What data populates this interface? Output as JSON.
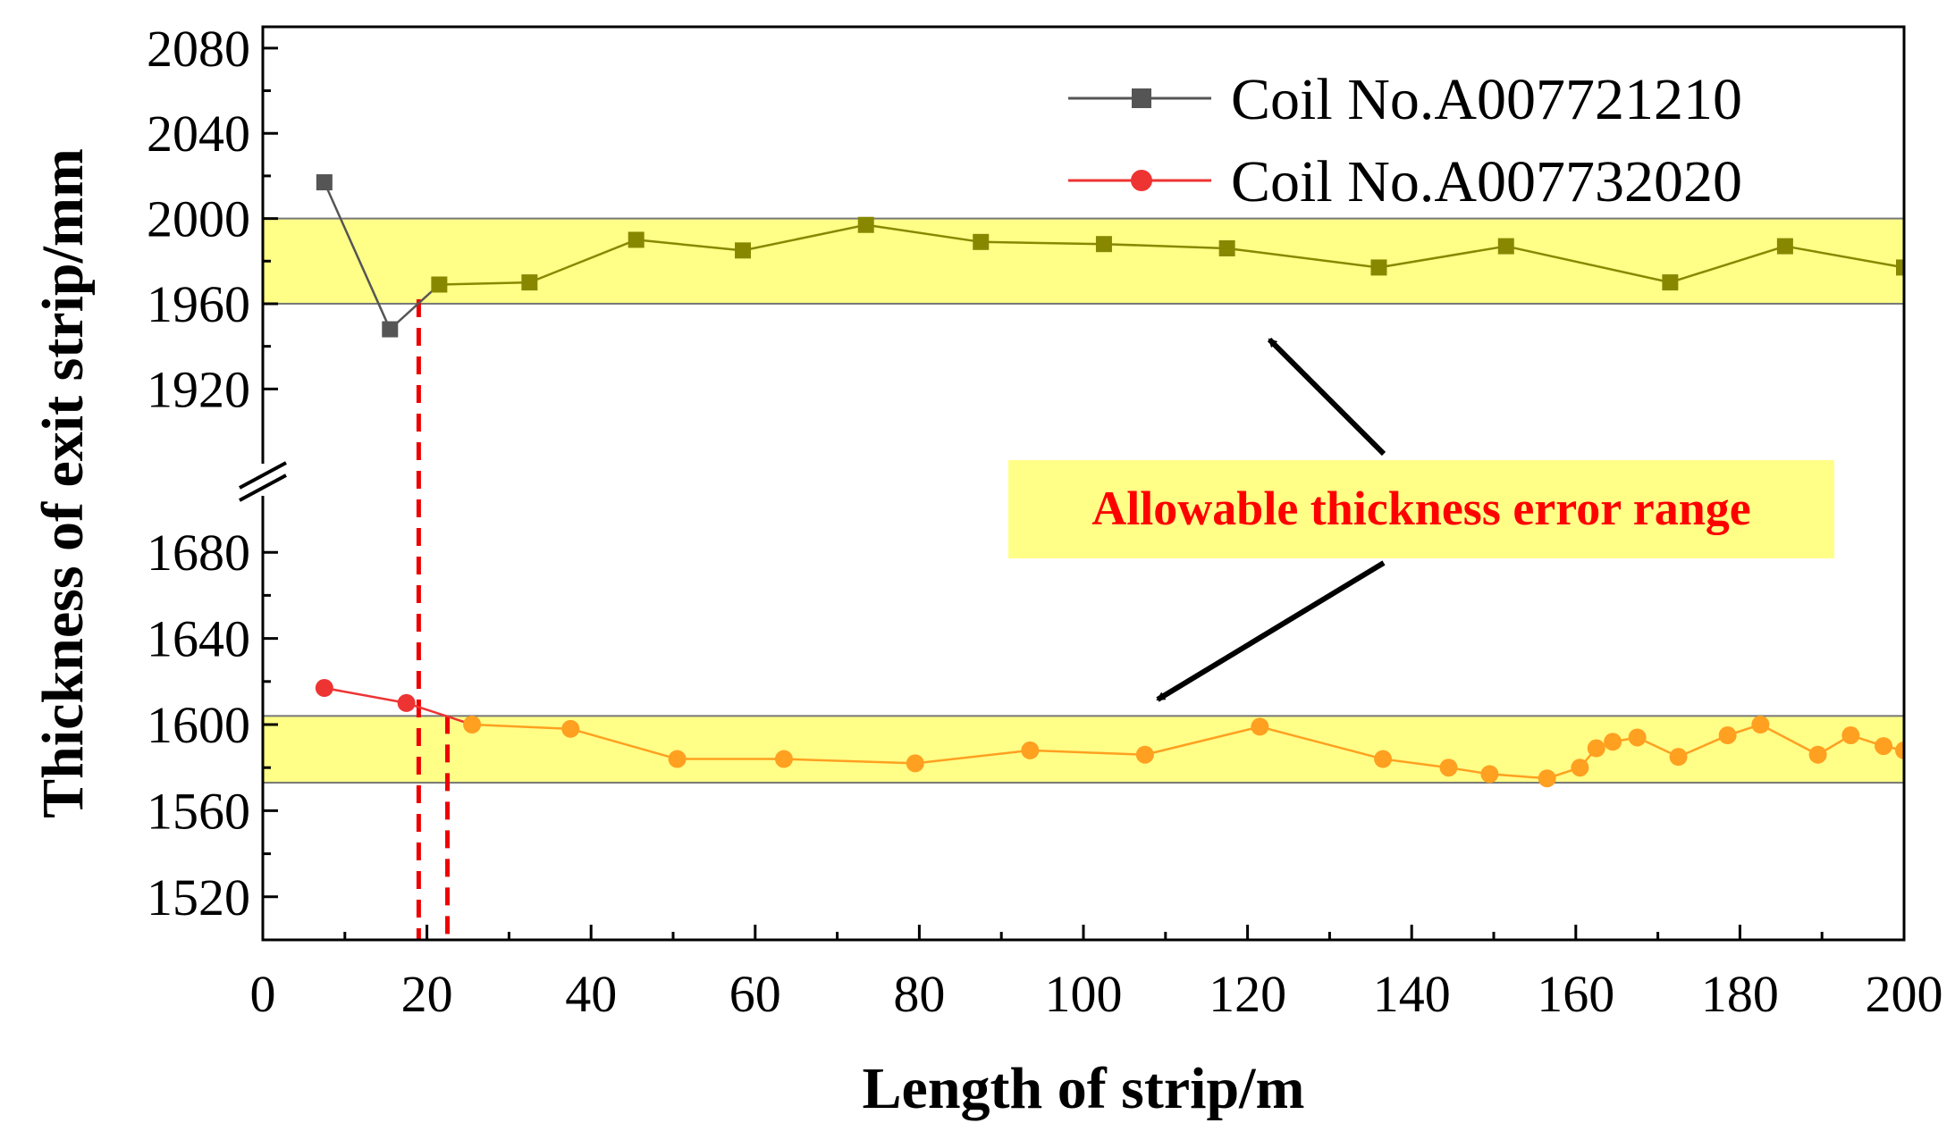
{
  "chart_data": {
    "type": "line",
    "title": "",
    "xlabel": "Length of strip/m",
    "ylabel": "Thickness of exit strip/mm",
    "xlim": [
      0,
      200
    ],
    "x_ticks": [
      0,
      20,
      40,
      60,
      80,
      100,
      120,
      140,
      160,
      180,
      200
    ],
    "y_axis_break": {
      "lower_segment": [
        1500,
        1700
      ],
      "upper_segment": [
        1900,
        2090
      ]
    },
    "y_ticks": [
      1520,
      1560,
      1600,
      1640,
      1680,
      1920,
      1960,
      2000,
      2040,
      2080
    ],
    "legend_position": "top-right",
    "series": [
      {
        "name": "Coil No.A007721210",
        "color": "#555555",
        "marker": "square",
        "x": [
          7.5,
          15.5,
          21.5,
          32.5,
          45.5,
          58.5,
          73.5,
          87.5,
          102.5,
          117.5,
          136,
          151.5,
          171.5,
          185.5,
          200
        ],
        "y": [
          2017,
          1948,
          1969,
          1970,
          1990,
          1985,
          1997,
          1989,
          1988,
          1986,
          1977,
          1987,
          1970,
          1987,
          1977
        ]
      },
      {
        "name": "Coil No.A007732020",
        "color": "#ee3333",
        "marker": "circle",
        "x": [
          7.5,
          17.5,
          25.5,
          37.5,
          50.5,
          63.5,
          79.5,
          93.5,
          107.5,
          121.5,
          136.5,
          144.5,
          149.5,
          156.5,
          160.5,
          162.5,
          164.5,
          167.5,
          172.5,
          178.5,
          182.5,
          189.5,
          193.5,
          197.5,
          200
        ],
        "y": [
          1617,
          1610,
          1600,
          1598,
          1584,
          1584,
          1582,
          1588,
          1586,
          1599,
          1584,
          1580,
          1577,
          1575,
          1580,
          1589,
          1592,
          1594,
          1585,
          1595,
          1600,
          1586,
          1595,
          1590,
          1588
        ]
      }
    ],
    "tolerance_bands": [
      {
        "segment": "upper",
        "y_range": [
          1960,
          2000
        ]
      },
      {
        "segment": "lower",
        "y_range": [
          1573,
          1604
        ]
      }
    ],
    "vertical_markers_x": [
      19,
      22.5
    ],
    "annotation": "Allowable thickness error range",
    "colors": {
      "band_fill": "#ffff88",
      "band_inside_upper_series": "#888800",
      "band_inside_lower_series": "#ffa020",
      "annotation_text": "#ff0000",
      "annotation_bg": "#ffff88",
      "marker_line": "#ee0000"
    }
  }
}
